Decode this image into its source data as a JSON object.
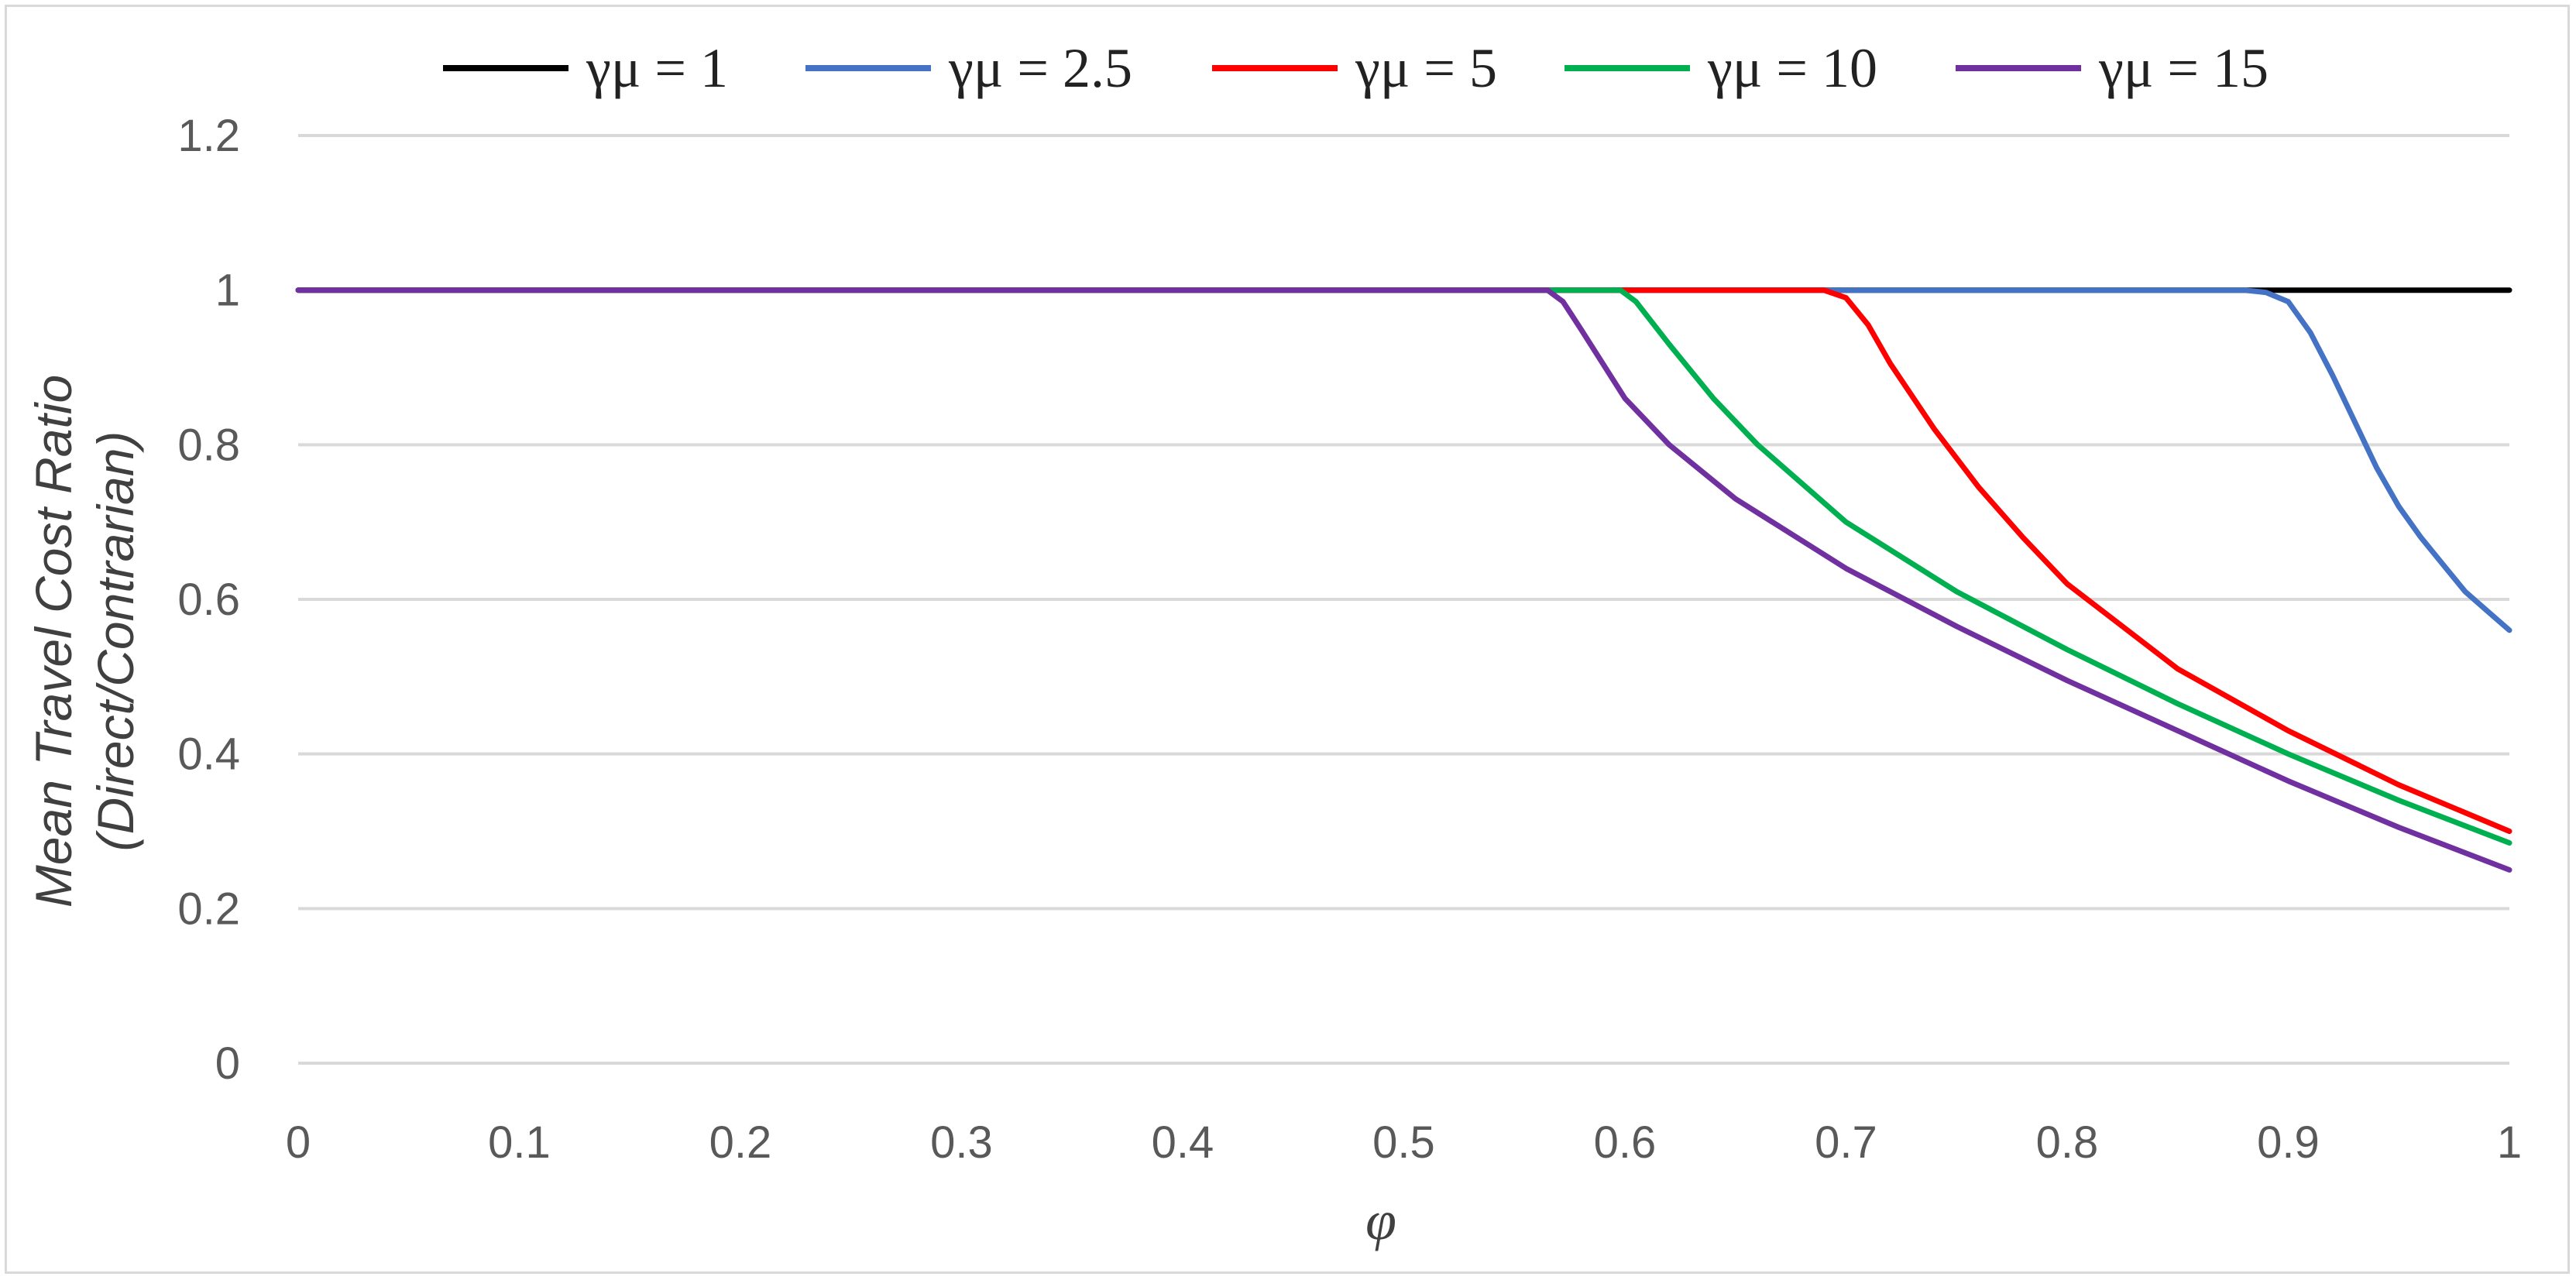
{
  "chart_data": {
    "type": "line",
    "title": "",
    "xlabel": "φ",
    "ylabel_lines": [
      "Mean Travel Cost Ratio",
      "(Direct/Contrarian)"
    ],
    "xlim": [
      0,
      1
    ],
    "ylim": [
      0,
      1.2
    ],
    "x_ticks": [
      "0",
      "0.1",
      "0.2",
      "0.3",
      "0.4",
      "0.5",
      "0.6",
      "0.7",
      "0.8",
      "0.9",
      "1"
    ],
    "y_ticks": [
      "0",
      "0.2",
      "0.4",
      "0.6",
      "0.8",
      "1",
      "1.2"
    ],
    "grid": "horizontal",
    "legend_position": "top",
    "series": [
      {
        "name": "γμ = 1",
        "color": "#000000",
        "points": [
          [
            0,
            1
          ],
          [
            1,
            1
          ]
        ]
      },
      {
        "name": "γμ = 2.5",
        "color": "#4472c4",
        "points": [
          [
            0,
            1
          ],
          [
            0.88,
            1
          ],
          [
            0.89,
            0.997
          ],
          [
            0.9,
            0.985
          ],
          [
            0.91,
            0.945
          ],
          [
            0.92,
            0.89
          ],
          [
            0.93,
            0.83
          ],
          [
            0.94,
            0.77
          ],
          [
            0.95,
            0.72
          ],
          [
            0.96,
            0.68
          ],
          [
            0.97,
            0.645
          ],
          [
            0.98,
            0.61
          ],
          [
            0.99,
            0.585
          ],
          [
            1,
            0.56
          ]
        ]
      },
      {
        "name": "γμ = 5",
        "color": "#ff0000",
        "points": [
          [
            0,
            1
          ],
          [
            0.69,
            1
          ],
          [
            0.7,
            0.99
          ],
          [
            0.71,
            0.955
          ],
          [
            0.72,
            0.905
          ],
          [
            0.74,
            0.82
          ],
          [
            0.76,
            0.745
          ],
          [
            0.78,
            0.68
          ],
          [
            0.8,
            0.62
          ],
          [
            0.85,
            0.51
          ],
          [
            0.9,
            0.43
          ],
          [
            0.95,
            0.36
          ],
          [
            1,
            0.3
          ]
        ]
      },
      {
        "name": "γμ = 10",
        "color": "#00b050",
        "points": [
          [
            0,
            1
          ],
          [
            0.598,
            1
          ],
          [
            0.605,
            0.985
          ],
          [
            0.62,
            0.93
          ],
          [
            0.64,
            0.86
          ],
          [
            0.66,
            0.8
          ],
          [
            0.7,
            0.7
          ],
          [
            0.75,
            0.61
          ],
          [
            0.8,
            0.535
          ],
          [
            0.85,
            0.465
          ],
          [
            0.9,
            0.4
          ],
          [
            0.95,
            0.34
          ],
          [
            1,
            0.285
          ]
        ]
      },
      {
        "name": "γμ = 15",
        "color": "#7030a0",
        "points": [
          [
            0,
            1
          ],
          [
            0.565,
            1
          ],
          [
            0.572,
            0.985
          ],
          [
            0.58,
            0.95
          ],
          [
            0.6,
            0.86
          ],
          [
            0.62,
            0.8
          ],
          [
            0.65,
            0.73
          ],
          [
            0.7,
            0.64
          ],
          [
            0.75,
            0.565
          ],
          [
            0.8,
            0.495
          ],
          [
            0.85,
            0.43
          ],
          [
            0.9,
            0.365
          ],
          [
            0.95,
            0.305
          ],
          [
            1,
            0.25
          ]
        ]
      }
    ]
  }
}
